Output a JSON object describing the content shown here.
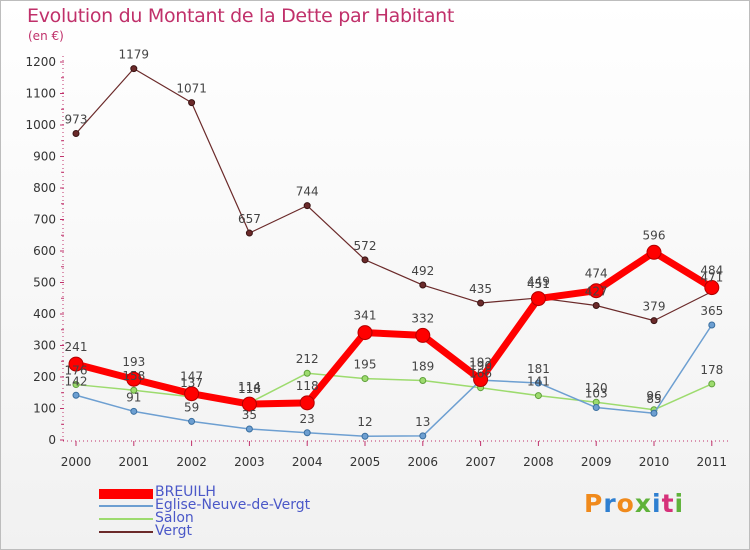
{
  "title": "Evolution du Montant de la Dette par Habitant",
  "unit": "(en €)",
  "logo_text": "Proxiti",
  "colors": {
    "BREUILH": "#ff0000",
    "Eglise-Neuve-de-Vergt": "#6d9fd1",
    "Salon": "#9ddb6e",
    "Vergt": "#6b2a2a",
    "title": "#c0306a",
    "legend_text": "#4b58c8"
  },
  "chart_data": {
    "type": "line",
    "title": "Evolution du Montant de la Dette par Habitant",
    "ylabel": "(en €)",
    "categories": [
      "2000",
      "2001",
      "2002",
      "2003",
      "2004",
      "2005",
      "2006",
      "2007",
      "2008",
      "2009",
      "2010",
      "2011"
    ],
    "ylim": [
      0,
      1200
    ],
    "yticks": [
      0,
      100,
      200,
      300,
      400,
      500,
      600,
      700,
      800,
      900,
      1000,
      1100,
      1200
    ],
    "grid": false,
    "legend_position": "bottom-left",
    "series": [
      {
        "name": "BREUILH",
        "values": [
          241,
          193,
          147,
          114,
          118,
          341,
          332,
          192,
          449,
          474,
          596,
          484
        ]
      },
      {
        "name": "Eglise-Neuve-de-Vergt",
        "values": [
          142,
          91,
          59,
          35,
          23,
          12,
          13,
          190,
          181,
          103,
          85,
          365
        ]
      },
      {
        "name": "Salon",
        "values": [
          176,
          158,
          137,
          118,
          212,
          195,
          189,
          166,
          141,
          120,
          96,
          178
        ]
      },
      {
        "name": "Vergt",
        "values": [
          973,
          1179,
          1071,
          657,
          744,
          572,
          492,
          435,
          451,
          427,
          379,
          471
        ]
      }
    ]
  }
}
